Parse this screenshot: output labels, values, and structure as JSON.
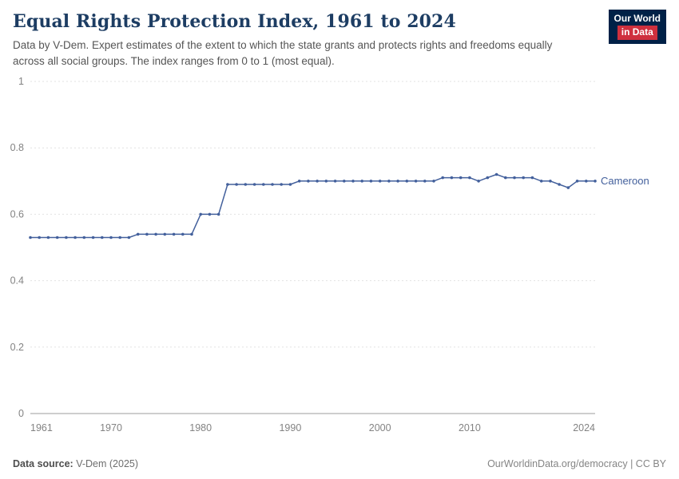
{
  "header": {
    "title": "Equal Rights Protection Index, 1961 to 2024",
    "subtitle": "Data by V-Dem. Expert estimates of the extent to which the state grants and protects rights and freedoms equally across all social groups. The index ranges from 0 to 1 (most equal)."
  },
  "logo": {
    "line1": "Our World",
    "line2": "in Data"
  },
  "colors": {
    "title_navy": "#1d3d63",
    "logo_navy": "#002147",
    "logo_red": "#cf303e",
    "series_blue": "#43609c",
    "grid_gray": "#e2e2e2"
  },
  "chart_data": {
    "type": "line",
    "title": "Equal Rights Protection Index, 1961 to 2024",
    "xlabel": "",
    "ylabel": "",
    "ylim": [
      0,
      1
    ],
    "grid": "horizontal-dashed",
    "legend_position": "end-of-line-label",
    "x": [
      1961,
      1962,
      1963,
      1964,
      1965,
      1966,
      1967,
      1968,
      1969,
      1970,
      1971,
      1972,
      1973,
      1974,
      1975,
      1976,
      1977,
      1978,
      1979,
      1980,
      1981,
      1982,
      1983,
      1984,
      1985,
      1986,
      1987,
      1988,
      1989,
      1990,
      1991,
      1992,
      1993,
      1994,
      1995,
      1996,
      1997,
      1998,
      1999,
      2000,
      2001,
      2002,
      2003,
      2004,
      2005,
      2006,
      2007,
      2008,
      2009,
      2010,
      2011,
      2012,
      2013,
      2014,
      2015,
      2016,
      2017,
      2018,
      2019,
      2020,
      2021,
      2022,
      2023,
      2024
    ],
    "xticks": [
      1961,
      1970,
      1980,
      1990,
      2000,
      2010,
      2024
    ],
    "yticks": [
      0,
      0.2,
      0.4,
      0.6,
      0.8,
      1
    ],
    "ytick_labels": [
      "0",
      "0.2",
      "0.4",
      "0.6",
      "0.8",
      "1"
    ],
    "series": [
      {
        "name": "Cameroon",
        "color": "#43609c",
        "values": [
          0.53,
          0.53,
          0.53,
          0.53,
          0.53,
          0.53,
          0.53,
          0.53,
          0.53,
          0.53,
          0.53,
          0.53,
          0.54,
          0.54,
          0.54,
          0.54,
          0.54,
          0.54,
          0.54,
          0.6,
          0.6,
          0.6,
          0.69,
          0.69,
          0.69,
          0.69,
          0.69,
          0.69,
          0.69,
          0.69,
          0.7,
          0.7,
          0.7,
          0.7,
          0.7,
          0.7,
          0.7,
          0.7,
          0.7,
          0.7,
          0.7,
          0.7,
          0.7,
          0.7,
          0.7,
          0.7,
          0.71,
          0.71,
          0.71,
          0.71,
          0.7,
          0.71,
          0.72,
          0.71,
          0.71,
          0.71,
          0.71,
          0.7,
          0.7,
          0.69,
          0.68,
          0.7,
          0.7,
          0.7
        ]
      }
    ]
  },
  "footer": {
    "source_label": "Data source:",
    "source_value": "V-Dem (2025)",
    "right": "OurWorldinData.org/democracy | CC BY"
  }
}
